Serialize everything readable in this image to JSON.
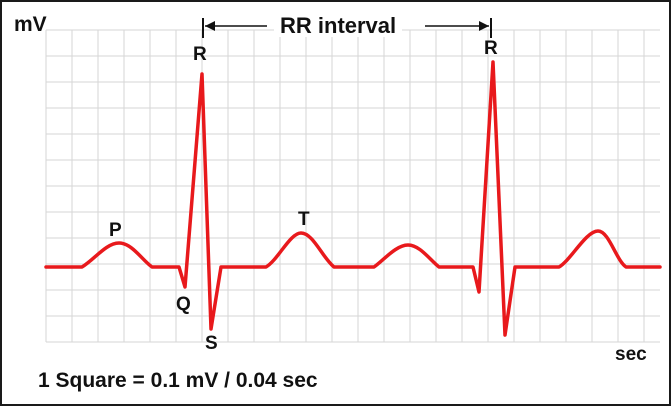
{
  "units": {
    "voltage": "mV",
    "time": "sec"
  },
  "scale_note": "1 Square = 0.1 mV / 0.04 sec",
  "rr_interval_label": "RR interval",
  "wave_labels": {
    "p": "P",
    "q": "Q",
    "r_first": "R",
    "s": "S",
    "t": "T",
    "r_second": "R"
  },
  "colors": {
    "trace": "#e8191c",
    "grid": "#d6d6d6",
    "text": "#111111",
    "border": "#1a1a1a"
  }
}
